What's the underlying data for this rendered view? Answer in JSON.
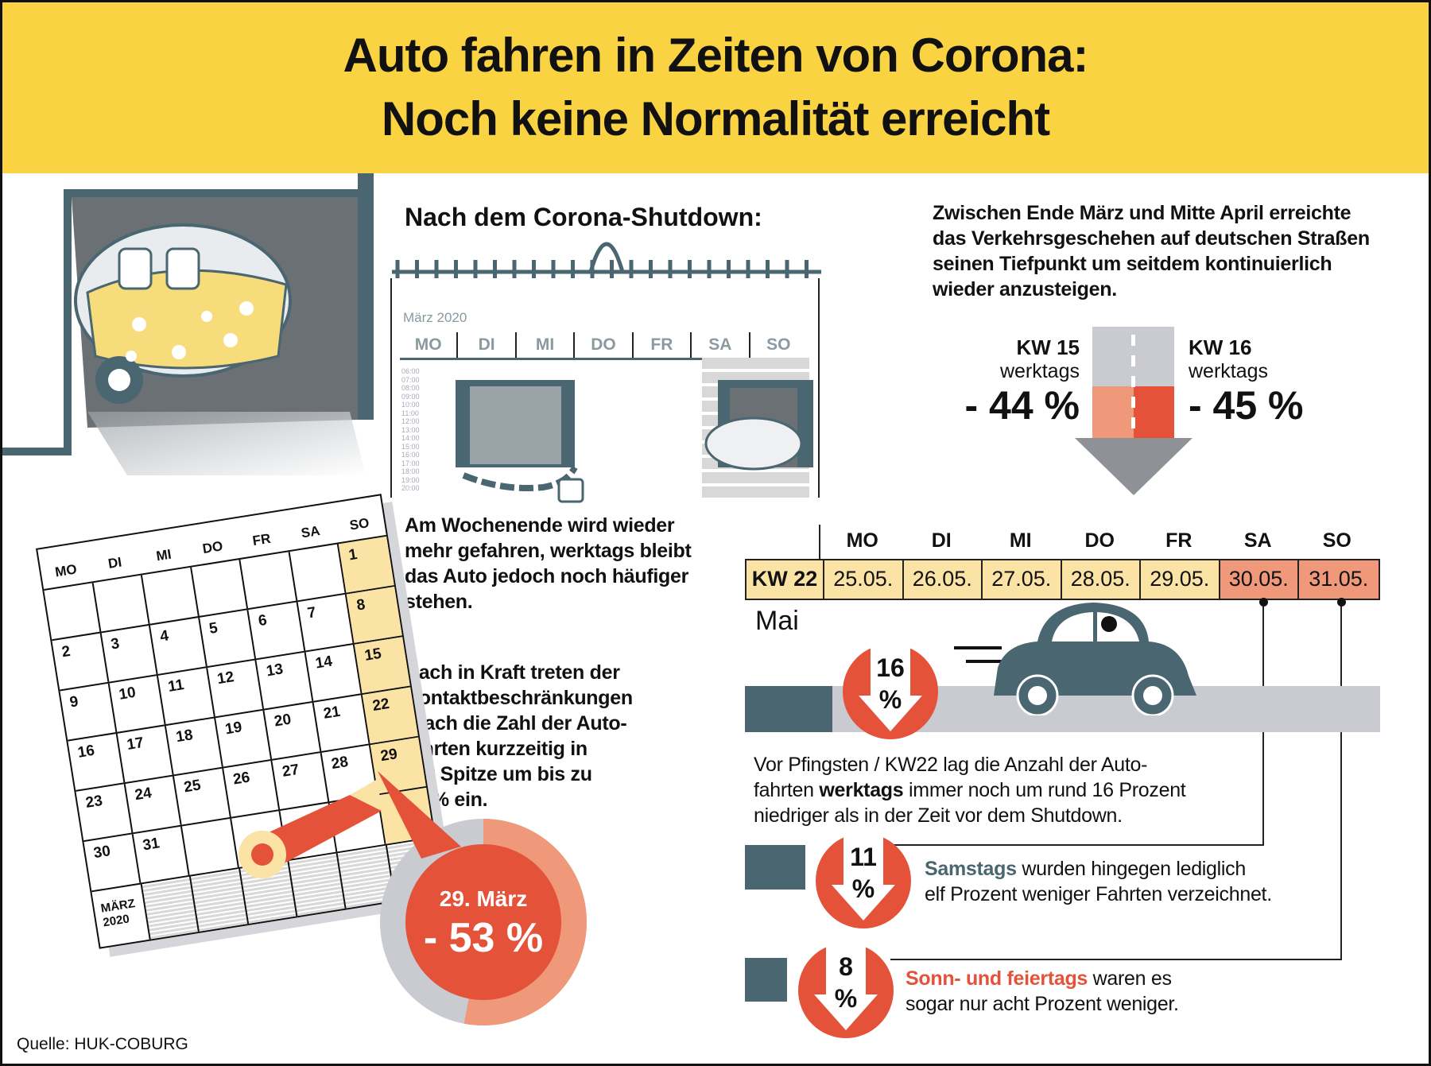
{
  "title": {
    "line1": "Auto fahren in Zeiten von Corona:",
    "line2": "Noch keine Normalität erreicht"
  },
  "colors": {
    "yellow": "#f9d342",
    "red": "#e4523a",
    "salmon": "#f0997a",
    "slate": "#4a6670",
    "gray": "#c9cbd0",
    "cream": "#fbe3a6"
  },
  "center": {
    "heading": "Nach dem Corona-Shutdown:",
    "calendar_label": "März 2020",
    "calendar_days": [
      "MO",
      "DI",
      "MI",
      "DO",
      "FR",
      "SA",
      "SO"
    ],
    "hours": [
      "06:00",
      "07:00",
      "08:00",
      "09:00",
      "10:00",
      "11:00",
      "12:00",
      "13:00",
      "14:00",
      "15:00",
      "16:00",
      "17:00",
      "18:00",
      "19:00",
      "20:00"
    ],
    "weekend_text": [
      "Am Wochenende wird wieder",
      "mehr gefahren, werktags bleibt",
      "das Auto jedoch noch häufiger",
      "stehen."
    ],
    "restriction_text": [
      "Nach in Kraft treten der",
      "Kontaktbeschränkungen",
      "brach die Zahl der Auto-",
      "fahrten kurzzeitig in",
      "der Spitze um bis zu",
      "53 % ein."
    ]
  },
  "left_calendar": {
    "days": [
      "MO",
      "DI",
      "MI",
      "DO",
      "FR",
      "SA",
      "SO"
    ],
    "weeks": [
      [
        "",
        "",
        "",
        "",
        "",
        "",
        "1"
      ],
      [
        "2",
        "3",
        "4",
        "5",
        "6",
        "7",
        "8"
      ],
      [
        "9",
        "10",
        "11",
        "12",
        "13",
        "14",
        "15"
      ],
      [
        "16",
        "17",
        "18",
        "19",
        "20",
        "21",
        "22"
      ],
      [
        "23",
        "24",
        "25",
        "26",
        "27",
        "28",
        "29"
      ],
      [
        "30",
        "31",
        "",
        "",
        "",
        "",
        ""
      ]
    ],
    "footer": [
      "MÄRZ",
      "2020"
    ]
  },
  "donut": {
    "date": "29. März",
    "value": "- 53 %",
    "percent": 53
  },
  "top_right": {
    "text": [
      "Zwischen Ende März und Mitte April erreichte",
      "das Verkehrsgeschehen auf deutschen Straßen",
      "seinen Tiefpunkt um seitdem kontinuierlich",
      "wieder anzusteigen."
    ],
    "kw15": {
      "label": "KW 15",
      "sub": "werktags",
      "value": "- 44 %"
    },
    "kw16": {
      "label": "KW 16",
      "sub": "werktags",
      "value": "- 45 %"
    }
  },
  "week": {
    "headers": [
      "MO",
      "DI",
      "MI",
      "DO",
      "FR",
      "SA",
      "SO"
    ],
    "label": "KW 22",
    "dates": [
      "25.05.",
      "26.05.",
      "27.05.",
      "28.05.",
      "29.05.",
      "30.05.",
      "31.05."
    ],
    "month": "Mai"
  },
  "stats": [
    {
      "value": "16",
      "unit": "%",
      "text_lines": [
        "Vor Pfingsten / KW22 lag die Anzahl der Auto-",
        "fahrten ",
        "werktags",
        " immer noch um rund 16 Prozent",
        "niedriger als in der Zeit vor dem Shutdown."
      ]
    },
    {
      "value": "11",
      "unit": "%",
      "highlight": "Samstags",
      "rest1": " wurden hingegen lediglich",
      "line2": "elf Prozent weniger Fahrten verzeichnet."
    },
    {
      "value": "8",
      "unit": "%",
      "highlight": "Sonn- und feiertags",
      "rest1": " waren es",
      "line2": "sogar nur acht Prozent weniger."
    }
  ],
  "source": "Quelle: HUK-COBURG"
}
